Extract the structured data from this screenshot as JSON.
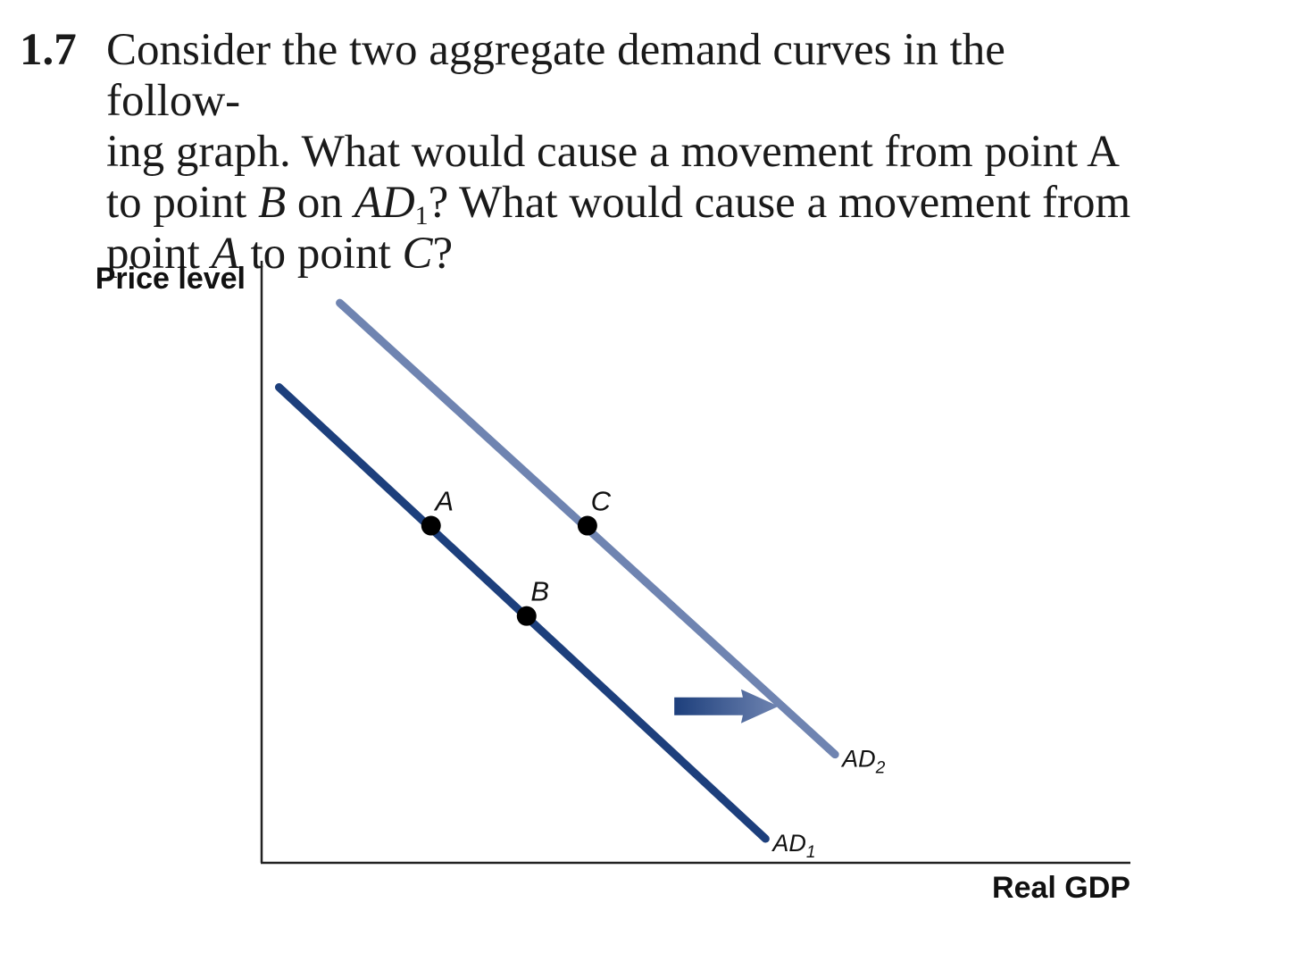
{
  "question": {
    "number": "1.7",
    "line1": "Consider the two aggregate demand curves in the follow-",
    "line2": "ing graph. What would cause a movement from point A",
    "line3_a": "to point ",
    "line3_b": "B",
    "line3_c": " on ",
    "line3_d": "AD",
    "line3_e": "1",
    "line3_f": "? What would cause a movement from",
    "line4_a": "point ",
    "line4_b": "A",
    "line4_c": " to point ",
    "line4_d": "C",
    "line4_e": "?"
  },
  "chart_data": {
    "type": "line",
    "xlabel": "Real GDP",
    "ylabel": "Price level",
    "xlim": [
      0,
      100
    ],
    "ylim": [
      0,
      100
    ],
    "grid": false,
    "series": [
      {
        "name": "AD",
        "subscript": "1",
        "color": "#1d3f7c",
        "x": [
          2,
          58
        ],
        "y": [
          79,
          4
        ]
      },
      {
        "name": "AD",
        "subscript": "2",
        "color": "#6f84b1",
        "x": [
          9,
          66
        ],
        "y": [
          93,
          18
        ]
      }
    ],
    "points": [
      {
        "label": "A",
        "x": 19.5,
        "y": 56,
        "series": 0
      },
      {
        "label": "B",
        "x": 30.5,
        "y": 41,
        "series": 0
      },
      {
        "label": "C",
        "x": 37.5,
        "y": 56,
        "series": 1
      }
    ],
    "arrow": {
      "x_from": 47.5,
      "x_to": 59.5,
      "y": 26,
      "color": "#3a5e9e",
      "meaning": "shift right"
    }
  }
}
